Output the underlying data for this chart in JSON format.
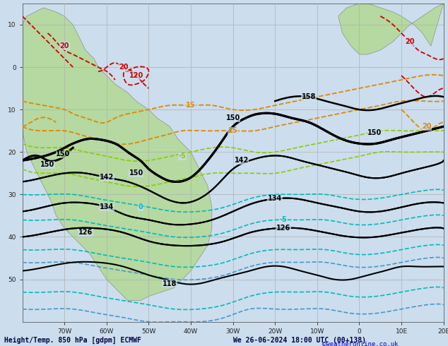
{
  "title_left": "Height/Temp. 850 hPa [gdpm] ECMWF",
  "title_right": "We 26-06-2024 18:00 UTC (00+138)",
  "credit": "©weatheronline.co.uk",
  "background_land": "#b5d9a0",
  "background_sea": "#ccdded",
  "grid_color": "#b0b0b0",
  "land_border_color": "#808080",
  "figsize": [
    6.34,
    4.9
  ],
  "dpi": 100,
  "xlim": [
    -80,
    20
  ],
  "ylim": [
    -60,
    15
  ],
  "xticks": [
    -70,
    -60,
    -50,
    -40,
    -30,
    -20,
    -10,
    0,
    10,
    20
  ],
  "yticks": [
    -50,
    -40,
    -30,
    -20,
    -10,
    0,
    10
  ],
  "xtick_labels": [
    "70W",
    "60W",
    "50W",
    "40W",
    "30W",
    "20W",
    "10W",
    "0",
    "10E",
    "20E"
  ],
  "ytick_labels": [
    "50",
    "40",
    "30",
    "20",
    "10",
    "0",
    "10"
  ],
  "xlabel_color": "#222222",
  "gp_color": "#000000",
  "temp_red": "#cc0000",
  "temp_orange": "#dd8800",
  "temp_ygreen": "#88cc00",
  "temp_green": "#44aa00",
  "temp_cyan": "#00bbbb",
  "temp_blue": "#4499cc",
  "temp_purple": "#cc00cc",
  "credit_color": "#0000cc",
  "title_color": "#000044"
}
